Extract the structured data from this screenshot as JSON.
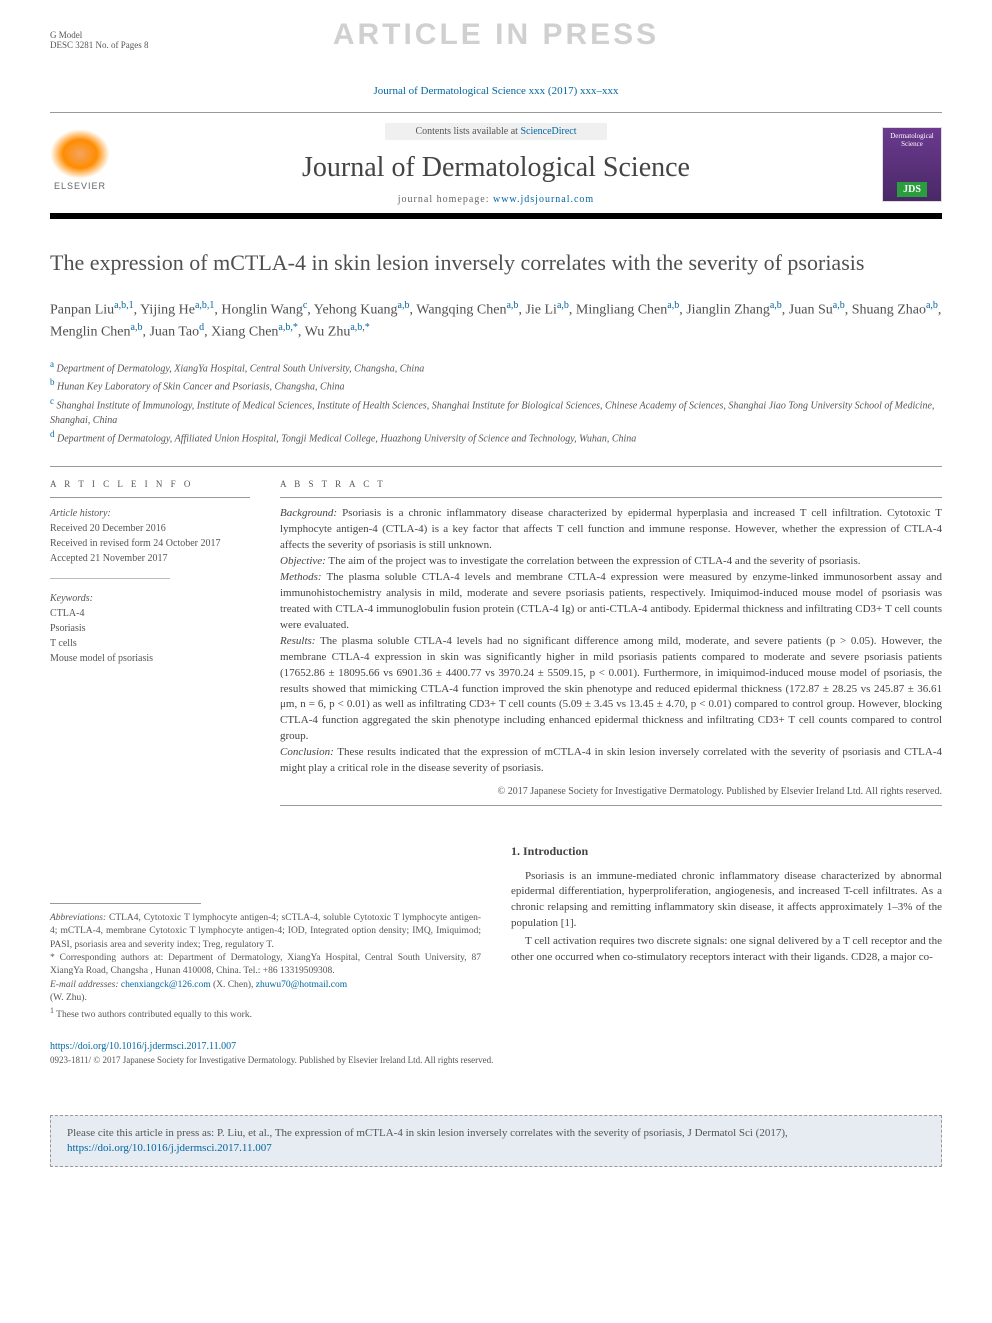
{
  "header": {
    "g_model": "G Model",
    "desc": "DESC 3281 No. of Pages 8",
    "watermark": "ARTICLE IN PRESS",
    "journal_ref": "Journal of Dermatological Science xxx (2017) xxx–xxx"
  },
  "masthead": {
    "elsevier": "ELSEVIER",
    "contents_prefix": "Contents lists available at ",
    "contents_link": "ScienceDirect",
    "journal_title": "Journal of Dermatological Science",
    "homepage_prefix": "journal homepage: ",
    "homepage_link": "www.jdsjournal.com",
    "cover_text": "Dermatological Science",
    "cover_badge": "JDS"
  },
  "title": "The expression of mCTLA-4 in skin lesion inversely correlates with the severity of psoriasis",
  "authors": [
    {
      "name": "Panpan Liu",
      "aff": "a,b,1"
    },
    {
      "name": "Yijing He",
      "aff": "a,b,1"
    },
    {
      "name": "Honglin Wang",
      "aff": "c"
    },
    {
      "name": "Yehong Kuang",
      "aff": "a,b"
    },
    {
      "name": "Wangqing Chen",
      "aff": "a,b"
    },
    {
      "name": "Jie Li",
      "aff": "a,b"
    },
    {
      "name": "Mingliang Chen",
      "aff": "a,b"
    },
    {
      "name": "Jianglin Zhang",
      "aff": "a,b"
    },
    {
      "name": "Juan Su",
      "aff": "a,b"
    },
    {
      "name": "Shuang Zhao",
      "aff": "a,b"
    },
    {
      "name": "Menglin Chen",
      "aff": "a,b"
    },
    {
      "name": "Juan Tao",
      "aff": "d"
    },
    {
      "name": "Xiang Chen",
      "aff": "a,b,*"
    },
    {
      "name": "Wu Zhu",
      "aff": "a,b,*"
    }
  ],
  "affiliations": [
    {
      "sup": "a",
      "text": "Department of Dermatology, XiangYa Hospital, Central South University, Changsha, China"
    },
    {
      "sup": "b",
      "text": "Hunan Key Laboratory of Skin Cancer and Psoriasis, Changsha, China"
    },
    {
      "sup": "c",
      "text": "Shanghai Institute of Immunology, Institute of Medical Sciences, Institute of Health Sciences, Shanghai Institute for Biological Sciences, Chinese Academy of Sciences, Shanghai Jiao Tong University School of Medicine, Shanghai, China"
    },
    {
      "sup": "d",
      "text": "Department of Dermatology, Affiliated Union Hospital, Tongji Medical College, Huazhong University of Science and Technology, Wuhan, China"
    }
  ],
  "article_info": {
    "label": "A R T I C L E   I N F O",
    "history_label": "Article history:",
    "received": "Received 20 December 2016",
    "revised": "Received in revised form 24 October 2017",
    "accepted": "Accepted 21 November 2017",
    "keywords_label": "Keywords:",
    "keywords": [
      "CTLA-4",
      "Psoriasis",
      "T cells",
      "Mouse model of psoriasis"
    ]
  },
  "abstract": {
    "label": "A B S T R A C T",
    "background_label": "Background:",
    "background": "Psoriasis is a chronic inflammatory disease characterized by epidermal hyperplasia and increased T cell infiltration. Cytotoxic T lymphocyte antigen-4 (CTLA-4) is a key factor that affects T cell function and immune response. However, whether the expression of CTLA-4 affects the severity of psoriasis is still unknown.",
    "objective_label": "Objective:",
    "objective": "The aim of the project was to investigate the correlation between the expression of CTLA-4 and the severity of psoriasis.",
    "methods_label": "Methods:",
    "methods": "The plasma soluble CTLA-4 levels and membrane CTLA-4 expression were measured by enzyme-linked immunosorbent assay and immunohistochemistry analysis in mild, moderate and severe psoriasis patients, respectively. Imiquimod-induced mouse model of psoriasis was treated with CTLA-4 immunoglobulin fusion protein (CTLA-4 Ig) or anti-CTLA-4 antibody. Epidermal thickness and infiltrating CD3+ T cell counts were evaluated.",
    "results_label": "Results:",
    "results": "The plasma soluble CTLA-4 levels had no significant difference among mild, moderate, and severe patients (p > 0.05). However, the membrane CTLA-4 expression in skin was significantly higher in mild psoriasis patients compared to moderate and severe psoriasis patients (17652.86 ± 18095.66 vs 6901.36 ± 4400.77 vs 3970.24 ± 5509.15, p < 0.001). Furthermore, in imiquimod-induced mouse model of psoriasis, the results showed that mimicking CTLA-4 function improved the skin phenotype and reduced epidermal thickness (172.87 ± 28.25 vs 245.87 ± 36.61 μm, n = 6, p < 0.01) as well as infiltrating CD3+ T cell counts (5.09 ± 3.45 vs 13.45 ± 4.70, p < 0.01) compared to control group. However, blocking CTLA-4 function aggregated the skin phenotype including enhanced epidermal thickness and infiltrating CD3+ T cell counts compared to control group.",
    "conclusion_label": "Conclusion:",
    "conclusion": "These results indicated that the expression of mCTLA-4 in skin lesion inversely correlated with the severity of psoriasis and CTLA-4 might play a critical role in the disease severity of psoriasis.",
    "copyright": "© 2017 Japanese Society for Investigative Dermatology. Published by Elsevier Ireland Ltd. All rights reserved."
  },
  "footnotes": {
    "abbrev_label": "Abbreviations:",
    "abbrev": "CTLA4, Cytotoxic T lymphocyte antigen-4; sCTLA-4, soluble Cytotoxic T lymphocyte antigen-4; mCTLA-4, membrane Cytotoxic T lymphocyte antigen-4; IOD, Integrated option density; IMQ, Imiquimod; PASI, psoriasis area and severity index; Treg, regulatory T.",
    "corr_label": "*",
    "corr": "Corresponding authors at: Department of Dermatology, XiangYa Hospital, Central South University, 87 XiangYa Road, Changsha , Hunan 410008, China. Tel.: +86 13319509308.",
    "email_label": "E-mail addresses:",
    "email1": "chenxiangck@126.com",
    "email1_name": "(X. Chen),",
    "email2": "zhuwu70@hotmail.com",
    "email2_name": "(W. Zhu).",
    "equal_label": "1",
    "equal": "These two authors contributed equally to this work."
  },
  "intro": {
    "heading": "1. Introduction",
    "p1": "Psoriasis is an immune-mediated chronic inflammatory disease characterized by abnormal epidermal differentiation, hyperproliferation, angiogenesis, and increased T-cell infiltrates. As a chronic relapsing and remitting inflammatory skin disease, it affects approximately 1–3% of the population [1].",
    "p2": "T cell activation requires two discrete signals: one signal delivered by a T cell receptor and the other one occurred when co-stimulatory receptors interact with their ligands. CD28, a major co-"
  },
  "doi": {
    "link": "https://doi.org/10.1016/j.jdermsci.2017.11.007",
    "issn": "0923-1811/ © 2017 Japanese Society for Investigative Dermatology. Published by Elsevier Ireland Ltd. All rights reserved."
  },
  "cite_box": {
    "prefix": "Please cite this article in press as: P. Liu, et al., The expression of mCTLA-4 in skin lesion inversely correlates with the severity of psoriasis, J Dermatol Sci (2017), ",
    "link": "https://doi.org/10.1016/j.jdermsci.2017.11.007"
  },
  "colors": {
    "link": "#0066a1",
    "text": "#444444",
    "muted": "#555555",
    "watermark": "#d0d0d0",
    "citebox_bg": "#e6ecf2"
  }
}
